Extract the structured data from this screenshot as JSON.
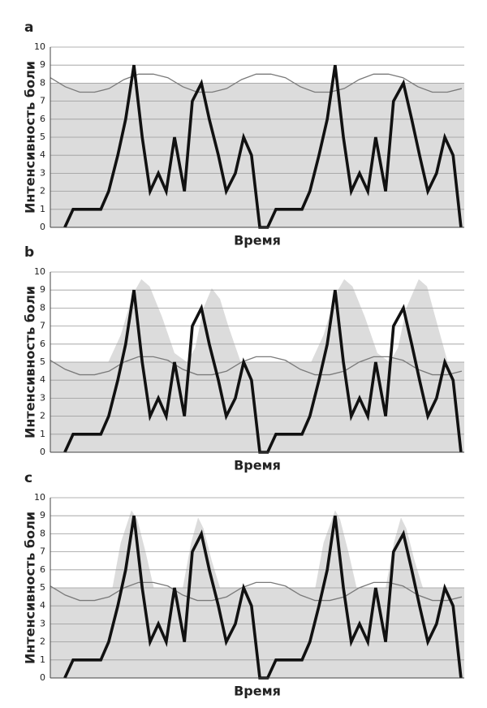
{
  "chart_data": [
    {
      "type": "line",
      "label": "a",
      "ylabel": "Интенсивность боли",
      "xlabel": "Время",
      "xlim": [
        0,
        100
      ],
      "ylim": [
        0,
        10
      ],
      "yticks": [
        0,
        1,
        2,
        3,
        4,
        5,
        6,
        7,
        8,
        9,
        10
      ],
      "grid": true,
      "series": [
        {
          "kind": "area",
          "color": "#dcdcdc",
          "x": [
            0,
            100
          ],
          "values": [
            8,
            8
          ]
        },
        {
          "kind": "line",
          "color": "#7a7a7a",
          "width": 1.3,
          "x": [
            0,
            3.6,
            7.1,
            10.7,
            14.2,
            17.8,
            21.3,
            24.9,
            28.4,
            32.0,
            35.5,
            39.1,
            42.6,
            46.2,
            49.7,
            53.3,
            56.8,
            60.4,
            63.9,
            67.5,
            71.0,
            74.6,
            78.1,
            81.7,
            85.2,
            88.8,
            92.3,
            95.9,
            99.4
          ],
          "values": [
            8.3,
            7.8,
            7.5,
            7.5,
            7.7,
            8.2,
            8.5,
            8.5,
            8.3,
            7.8,
            7.5,
            7.5,
            7.7,
            8.2,
            8.5,
            8.5,
            8.3,
            7.8,
            7.5,
            7.5,
            7.7,
            8.2,
            8.5,
            8.5,
            8.3,
            7.8,
            7.5,
            7.5,
            7.7
          ]
        },
        {
          "kind": "line",
          "color": "#111111",
          "width": 3.6,
          "x": [
            3.5,
            5.5,
            7.5,
            12.2,
            14.1,
            16.3,
            18.2,
            20.2,
            22.2,
            24.1,
            26.1,
            28.0,
            30.0,
            32.4,
            34.3,
            36.5,
            38.4,
            40.6,
            42.5,
            44.7,
            46.7,
            48.6,
            50.6,
            52.5,
            54.5,
            56.5,
            60.8,
            62.7,
            64.9,
            66.9,
            68.8,
            70.8,
            72.7,
            74.7,
            76.7,
            78.6,
            81.0,
            82.9,
            85.3,
            87.3,
            89.2,
            91.2,
            93.3,
            95.3,
            97.3,
            99.2
          ],
          "values": [
            0,
            1,
            1,
            1,
            2,
            4,
            6,
            9,
            5,
            2,
            3,
            2,
            5,
            2,
            7,
            8,
            6,
            4,
            2,
            3,
            5,
            4,
            0,
            0,
            1,
            1,
            1,
            2,
            4,
            6,
            9,
            5,
            2,
            3,
            2,
            5,
            2,
            7,
            8,
            6,
            4,
            2,
            3,
            5,
            4,
            0
          ]
        }
      ]
    },
    {
      "type": "line",
      "label": "b",
      "ylabel": "Интенсивность боли",
      "xlabel": "Время",
      "xlim": [
        0,
        100
      ],
      "ylim": [
        0,
        10
      ],
      "yticks": [
        0,
        1,
        2,
        3,
        4,
        5,
        6,
        7,
        8,
        9,
        10
      ],
      "grid": true,
      "series": [
        {
          "kind": "area",
          "color": "#dcdcdc",
          "x": [
            0,
            14,
            17,
            20,
            22,
            24,
            27,
            30,
            33,
            35,
            37,
            39,
            41,
            43,
            46,
            63,
            66,
            69,
            71,
            73,
            76,
            79,
            82,
            84,
            86,
            89,
            91,
            93,
            96,
            100
          ],
          "values": [
            5,
            5,
            6.5,
            8.8,
            9.6,
            9.2,
            7.5,
            5.5,
            5,
            5.8,
            8,
            9.1,
            8.5,
            7,
            5,
            5,
            6.5,
            8.8,
            9.6,
            9.2,
            7.5,
            5.5,
            5,
            5.8,
            8,
            9.6,
            9.2,
            7.5,
            5,
            5
          ]
        },
        {
          "kind": "line",
          "color": "#7a7a7a",
          "width": 1.3,
          "x": [
            0,
            3.6,
            7.1,
            10.7,
            14.2,
            17.8,
            21.3,
            24.9,
            28.4,
            32.0,
            35.5,
            39.1,
            42.6,
            46.2,
            49.7,
            53.3,
            56.8,
            60.4,
            63.9,
            67.5,
            71.0,
            74.6,
            78.1,
            81.7,
            85.2,
            88.8,
            92.3,
            95.9,
            99.4
          ],
          "values": [
            5.1,
            4.6,
            4.3,
            4.3,
            4.5,
            5.0,
            5.3,
            5.3,
            5.1,
            4.6,
            4.3,
            4.3,
            4.5,
            5.0,
            5.3,
            5.3,
            5.1,
            4.6,
            4.3,
            4.3,
            4.5,
            5.0,
            5.3,
            5.3,
            5.1,
            4.6,
            4.3,
            4.3,
            4.5
          ]
        },
        {
          "kind": "line",
          "color": "#111111",
          "width": 3.6,
          "x": [
            3.5,
            5.5,
            7.5,
            12.2,
            14.1,
            16.3,
            18.2,
            20.2,
            22.2,
            24.1,
            26.1,
            28.0,
            30.0,
            32.4,
            34.3,
            36.5,
            38.4,
            40.6,
            42.5,
            44.7,
            46.7,
            48.6,
            50.6,
            52.5,
            54.5,
            56.5,
            60.8,
            62.7,
            64.9,
            66.9,
            68.8,
            70.8,
            72.7,
            74.7,
            76.7,
            78.6,
            81.0,
            82.9,
            85.3,
            87.3,
            89.2,
            91.2,
            93.3,
            95.3,
            97.3,
            99.2
          ],
          "values": [
            0,
            1,
            1,
            1,
            2,
            4,
            6,
            9,
            5,
            2,
            3,
            2,
            5,
            2,
            7,
            8,
            6,
            4,
            2,
            3,
            5,
            4,
            0,
            0,
            1,
            1,
            1,
            2,
            4,
            6,
            9,
            5,
            2,
            3,
            2,
            5,
            2,
            7,
            8,
            6,
            4,
            2,
            3,
            5,
            4,
            0
          ]
        }
      ]
    },
    {
      "type": "line",
      "label": "c",
      "ylabel": "Интенсивность боли",
      "xlabel": "Время",
      "xlim": [
        0,
        100
      ],
      "ylim": [
        0,
        10
      ],
      "yticks": [
        0,
        1,
        2,
        3,
        4,
        5,
        6,
        7,
        8,
        9,
        10
      ],
      "grid": true,
      "series": [
        {
          "kind": "area",
          "color": "#dcdcdc",
          "x": [
            0,
            15,
            17,
            19.6,
            21,
            23,
            25,
            32,
            34,
            35.7,
            37,
            39,
            41,
            64,
            66,
            68.8,
            70,
            72,
            74,
            81,
            83,
            84.7,
            86,
            88,
            90,
            100
          ],
          "values": [
            5,
            5,
            7.5,
            9.3,
            8.8,
            7,
            5,
            5,
            7.5,
            8.9,
            8.3,
            6.5,
            5,
            5,
            7.5,
            9.3,
            8.8,
            7,
            5,
            5,
            7.5,
            8.9,
            8.3,
            6.5,
            5,
            5
          ]
        },
        {
          "kind": "line",
          "color": "#7a7a7a",
          "width": 1.3,
          "x": [
            0,
            3.6,
            7.1,
            10.7,
            14.2,
            17.8,
            21.3,
            24.9,
            28.4,
            32.0,
            35.5,
            39.1,
            42.6,
            46.2,
            49.7,
            53.3,
            56.8,
            60.4,
            63.9,
            67.5,
            71.0,
            74.6,
            78.1,
            81.7,
            85.2,
            88.8,
            92.3,
            95.9,
            99.4
          ],
          "values": [
            5.1,
            4.6,
            4.3,
            4.3,
            4.5,
            5.0,
            5.3,
            5.3,
            5.1,
            4.6,
            4.3,
            4.3,
            4.5,
            5.0,
            5.3,
            5.3,
            5.1,
            4.6,
            4.3,
            4.3,
            4.5,
            5.0,
            5.3,
            5.3,
            5.1,
            4.6,
            4.3,
            4.3,
            4.5
          ]
        },
        {
          "kind": "line",
          "color": "#111111",
          "width": 3.6,
          "x": [
            3.5,
            5.5,
            7.5,
            12.2,
            14.1,
            16.3,
            18.2,
            20.2,
            22.2,
            24.1,
            26.1,
            28.0,
            30.0,
            32.4,
            34.3,
            36.5,
            38.4,
            40.6,
            42.5,
            44.7,
            46.7,
            48.6,
            50.6,
            52.5,
            54.5,
            56.5,
            60.8,
            62.7,
            64.9,
            66.9,
            68.8,
            70.8,
            72.7,
            74.7,
            76.7,
            78.6,
            81.0,
            82.9,
            85.3,
            87.3,
            89.2,
            91.2,
            93.3,
            95.3,
            97.3,
            99.2
          ],
          "values": [
            0,
            1,
            1,
            1,
            2,
            4,
            6,
            9,
            5,
            2,
            3,
            2,
            5,
            2,
            7,
            8,
            6,
            4,
            2,
            3,
            5,
            4,
            0,
            0,
            1,
            1,
            1,
            2,
            4,
            6,
            9,
            5,
            2,
            3,
            2,
            5,
            2,
            7,
            8,
            6,
            4,
            2,
            3,
            5,
            4,
            0
          ]
        }
      ]
    }
  ]
}
